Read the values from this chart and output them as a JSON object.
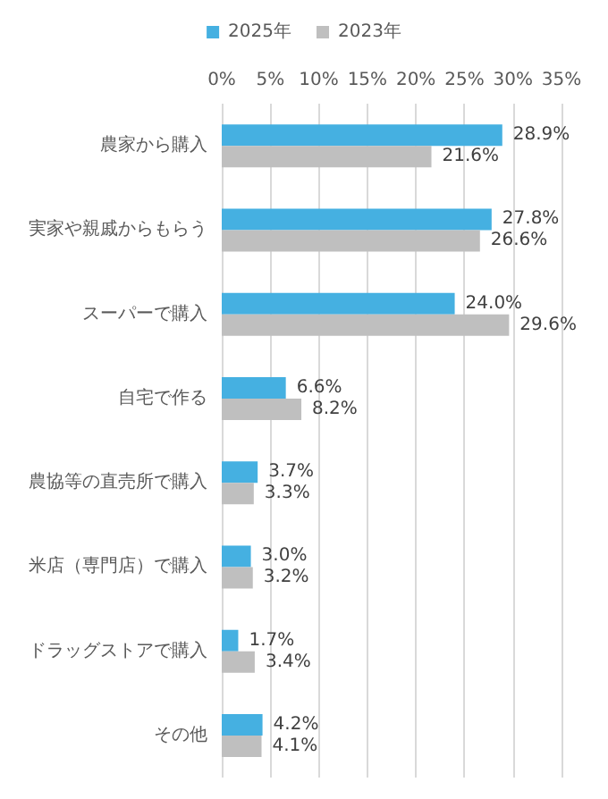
{
  "chart_data": {
    "type": "bar",
    "orientation": "horizontal",
    "categories": [
      "農家から購入",
      "実家や親戚からもらう",
      "スーパーで購入",
      "自宅で作る",
      "農協等の直売所で購入",
      "米店（専門店）で購入",
      "ドラッグストアで購入",
      "その他"
    ],
    "series": [
      {
        "name": "2025年",
        "color": "#45b0e1",
        "values": [
          28.9,
          27.8,
          24.0,
          6.6,
          3.7,
          3.0,
          1.7,
          4.2
        ],
        "value_labels": [
          "28.9%",
          "27.8%",
          "24.0%",
          "6.6%",
          "3.7%",
          "3.0%",
          "1.7%",
          "4.2%"
        ]
      },
      {
        "name": "2023年",
        "color": "#bfbfbf",
        "values": [
          21.6,
          26.6,
          29.6,
          8.2,
          3.3,
          3.2,
          3.4,
          4.1
        ],
        "value_labels": [
          "21.6%",
          "26.6%",
          "29.6%",
          "8.2%",
          "3.3%",
          "3.2%",
          "3.4%",
          "4.1%"
        ]
      }
    ],
    "xlim": [
      0,
      35
    ],
    "xticks": [
      {
        "value": 0,
        "label": "0%"
      },
      {
        "value": 5,
        "label": "5%"
      },
      {
        "value": 10,
        "label": "10%"
      },
      {
        "value": 15,
        "label": "15%"
      },
      {
        "value": 20,
        "label": "20%"
      },
      {
        "value": 25,
        "label": "25%"
      },
      {
        "value": 30,
        "label": "30%"
      },
      {
        "value": 35,
        "label": "35%"
      }
    ],
    "grid": "x",
    "legend": "top"
  }
}
